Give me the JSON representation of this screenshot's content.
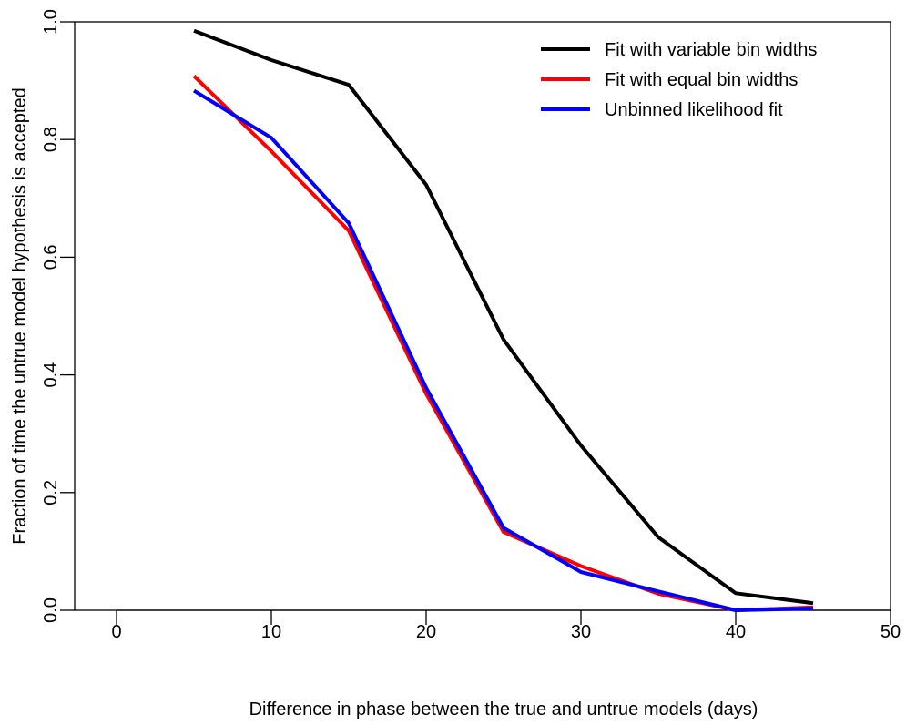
{
  "chart_data": {
    "type": "line",
    "title": "",
    "xlabel": "Difference in phase between the true and untrue models (days)",
    "ylabel": "Fraction of time the untrue model hypothesis is accepted",
    "xlim": [
      0,
      50
    ],
    "ylim": [
      0,
      1
    ],
    "x_ticks": [
      0,
      10,
      20,
      30,
      40,
      50
    ],
    "y_ticks": [
      0.0,
      0.2,
      0.4,
      0.6,
      0.8,
      1.0
    ],
    "x_tick_labels": [
      "0",
      "10",
      "20",
      "30",
      "40",
      "50"
    ],
    "y_tick_labels": [
      "0.0",
      "0.2",
      "0.4",
      "0.6",
      "0.8",
      "1.0"
    ],
    "grid": false,
    "legend_position": "top-right",
    "x": [
      5,
      10,
      15,
      20,
      25,
      30,
      35,
      40,
      45
    ],
    "series": [
      {
        "name": "Fit with variable bin widths",
        "color": "#000000",
        "values": [
          0.985,
          0.935,
          0.893,
          0.723,
          0.46,
          0.28,
          0.124,
          0.029,
          0.012
        ]
      },
      {
        "name": "Fit with equal bin widths",
        "color": "#ff0000",
        "values": [
          0.908,
          0.78,
          0.645,
          0.368,
          0.133,
          0.075,
          0.028,
          0.0,
          0.005
        ]
      },
      {
        "name": "Unbinned likelihood fit",
        "color": "#0000ff",
        "values": [
          0.883,
          0.803,
          0.658,
          0.378,
          0.14,
          0.065,
          0.032,
          0.0,
          0.003
        ]
      }
    ]
  }
}
